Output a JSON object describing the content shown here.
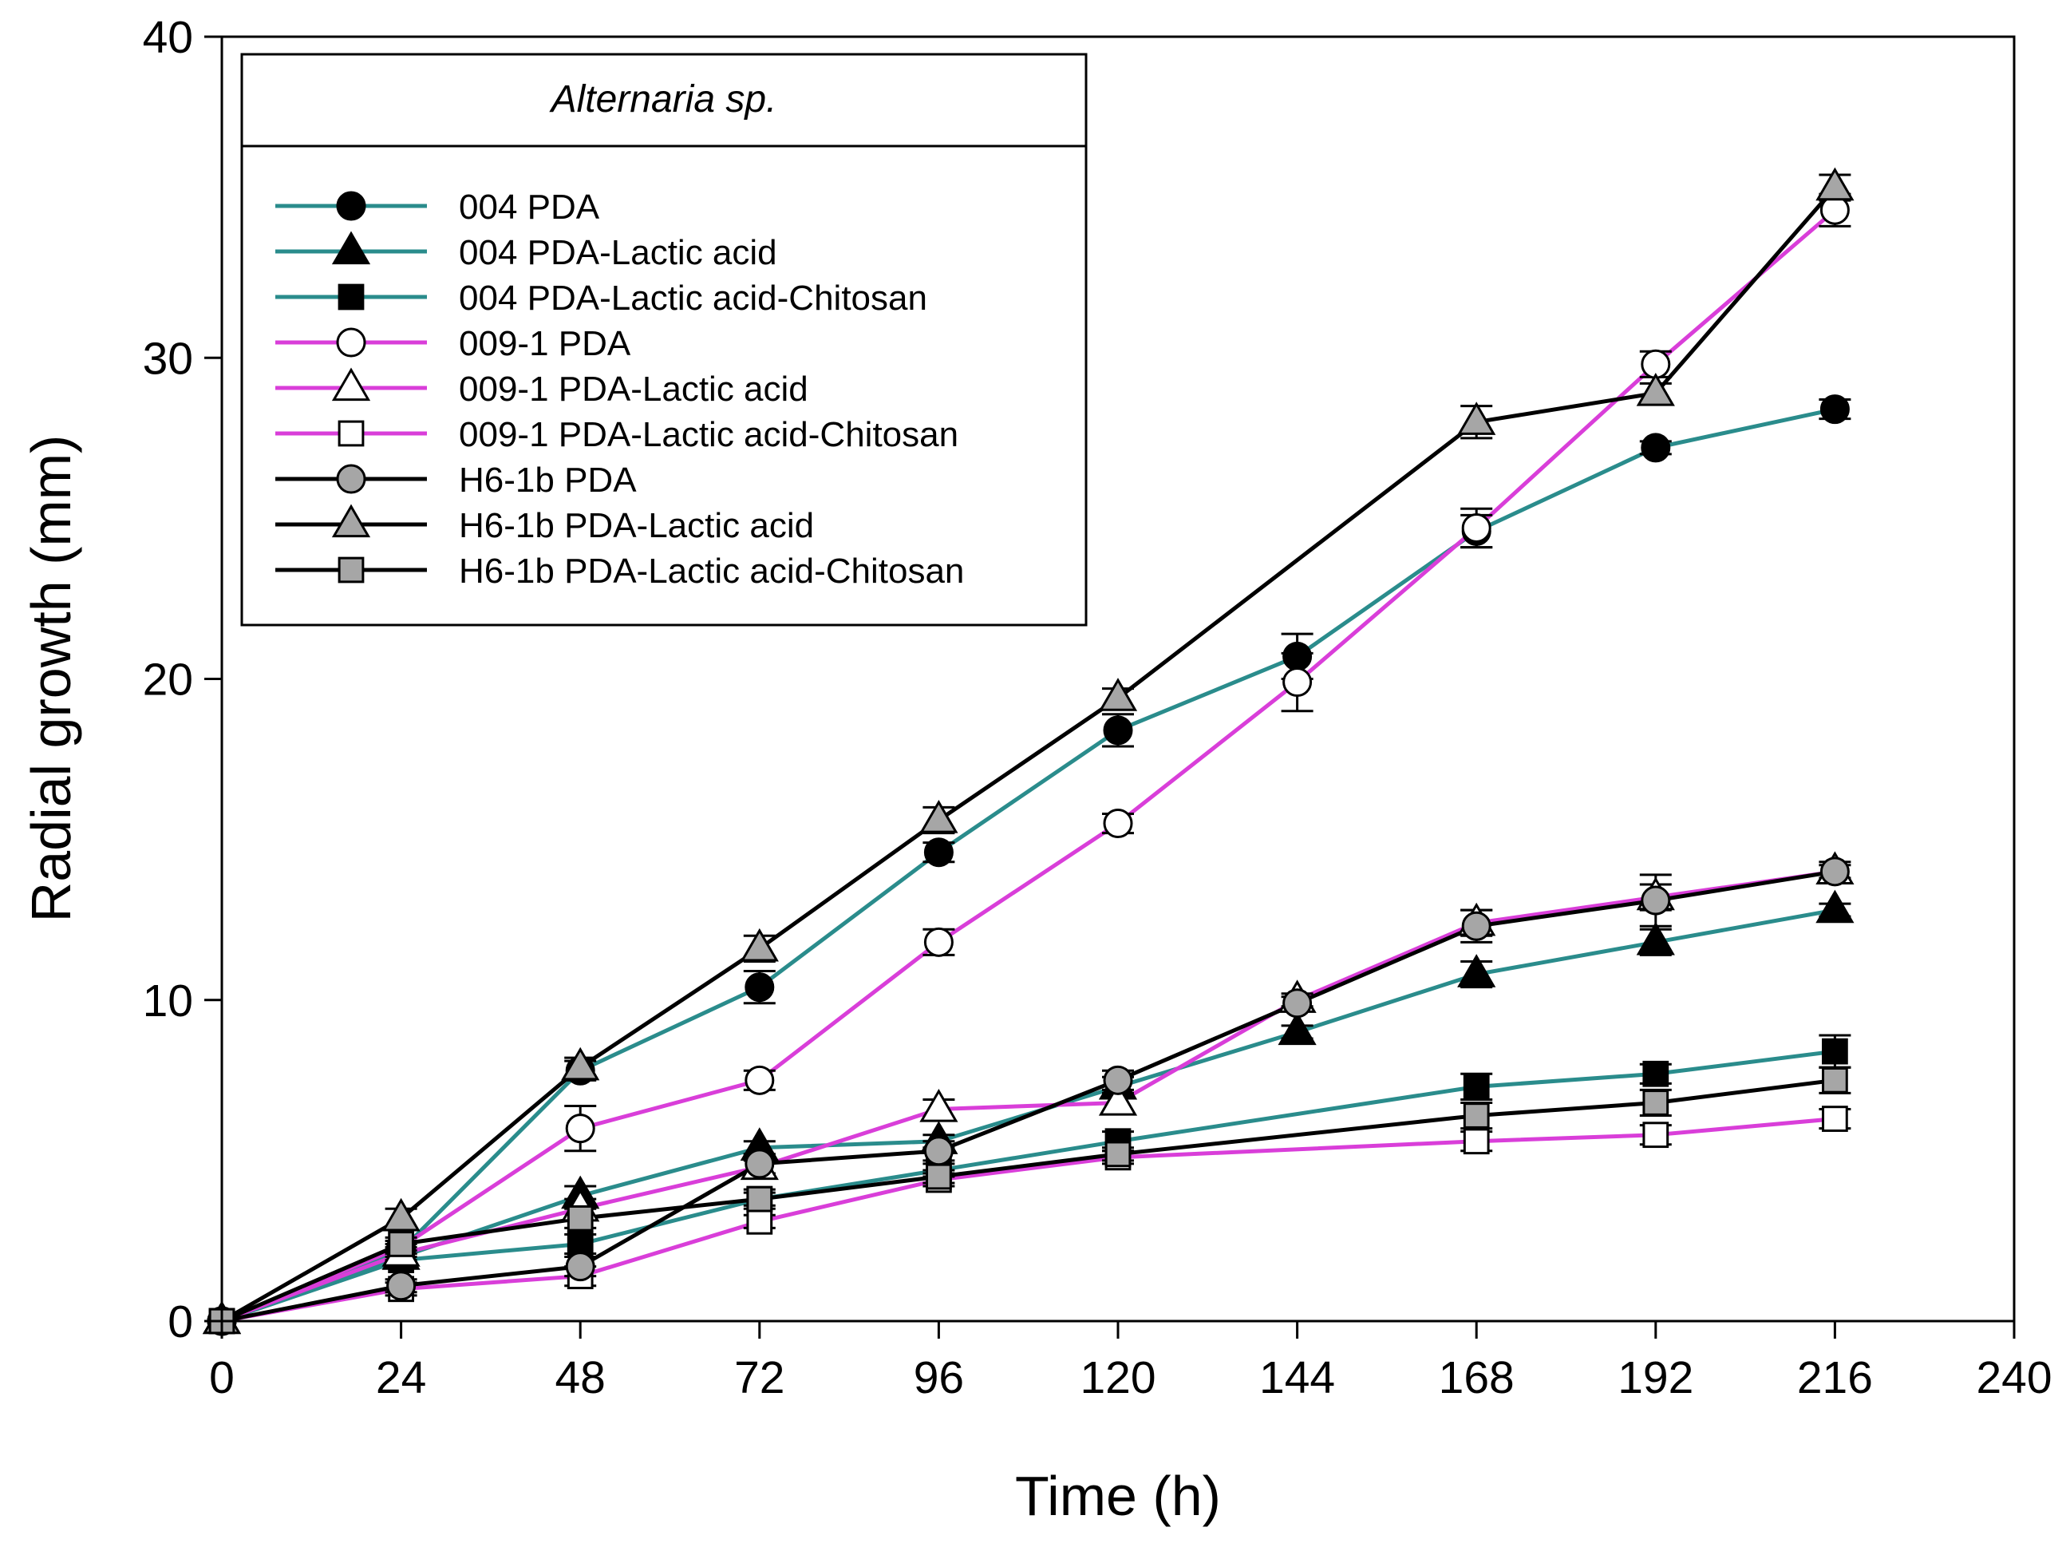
{
  "chart_data": {
    "type": "line",
    "title": "Alternaria sp.",
    "xlabel": "Time (h)",
    "ylabel": "Radial growth (mm)",
    "xlim": [
      0,
      240
    ],
    "ylim": [
      0,
      40
    ],
    "xticks": [
      0,
      24,
      48,
      72,
      96,
      120,
      144,
      168,
      192,
      216,
      240
    ],
    "yticks": [
      0,
      10,
      20,
      30,
      40
    ],
    "grid": false,
    "legend_position": "top-left",
    "colors": {
      "teal": "#2a8c8c",
      "magenta": "#d93ed9",
      "black": "#000000",
      "gray_marker": "#a6a6a6",
      "white_marker": "#ffffff"
    },
    "series": [
      {
        "name": "004 PDA",
        "line_color": "#2a8c8c",
        "marker": "circle",
        "marker_fill": "#000000",
        "x": [
          0,
          24,
          48,
          72,
          96,
          120,
          144,
          168,
          192,
          216
        ],
        "y": [
          0,
          2.2,
          7.8,
          10.4,
          14.6,
          18.4,
          20.7,
          24.6,
          27.2,
          28.4
        ],
        "err": [
          0,
          0.2,
          0.3,
          0.5,
          0.3,
          0.5,
          0.7,
          0.5,
          0.2,
          0.3
        ]
      },
      {
        "name": "004 PDA-Lactic acid",
        "line_color": "#2a8c8c",
        "marker": "triangle",
        "marker_fill": "#000000",
        "x": [
          0,
          24,
          48,
          72,
          96,
          120,
          144,
          168,
          192,
          216
        ],
        "y": [
          0,
          2.0,
          3.9,
          5.4,
          5.6,
          7.3,
          9.0,
          10.8,
          11.8,
          12.8
        ],
        "err": [
          0,
          0.2,
          0.3,
          0.2,
          0.2,
          0.3,
          0.2,
          0.4,
          0.4,
          0.2
        ]
      },
      {
        "name": "004 PDA-Lactic acid-Chitosan",
        "line_color": "#2a8c8c",
        "marker": "square",
        "marker_fill": "#000000",
        "x": [
          0,
          24,
          48,
          72,
          96,
          120,
          168,
          192,
          216
        ],
        "y": [
          0,
          1.9,
          2.4,
          3.8,
          4.7,
          5.6,
          7.3,
          7.7,
          8.4
        ],
        "err": [
          0,
          0.2,
          0.3,
          0.2,
          0.2,
          0.3,
          0.4,
          0.3,
          0.5
        ]
      },
      {
        "name": "009-1 PDA",
        "line_color": "#d93ed9",
        "marker": "circle",
        "marker_fill": "#ffffff",
        "x": [
          0,
          24,
          48,
          72,
          96,
          120,
          144,
          168,
          192,
          216
        ],
        "y": [
          0,
          2.3,
          6.0,
          7.5,
          11.8,
          15.5,
          19.9,
          24.7,
          29.8,
          34.6
        ],
        "err": [
          0,
          0.2,
          0.7,
          0.3,
          0.4,
          0.3,
          0.9,
          0.6,
          0.4,
          0.5
        ]
      },
      {
        "name": "009-1 PDA-Lactic acid",
        "line_color": "#d93ed9",
        "marker": "triangle",
        "marker_fill": "#ffffff",
        "x": [
          0,
          24,
          48,
          72,
          96,
          120,
          144,
          168,
          192,
          216
        ],
        "y": [
          0,
          2.1,
          3.5,
          4.8,
          6.6,
          6.8,
          10.0,
          12.4,
          13.2,
          14.0
        ],
        "err": [
          0,
          0.2,
          0.3,
          0.2,
          0.3,
          0.3,
          0.2,
          0.4,
          0.4,
          0.2
        ]
      },
      {
        "name": "009-1 PDA-Lactic acid-Chitosan",
        "line_color": "#d93ed9",
        "marker": "square",
        "marker_fill": "#ffffff",
        "x": [
          0,
          24,
          48,
          72,
          96,
          120,
          168,
          192,
          216
        ],
        "y": [
          0,
          1.0,
          1.4,
          3.1,
          4.4,
          5.1,
          5.6,
          5.8,
          6.3
        ],
        "err": [
          0,
          0.2,
          0.3,
          0.2,
          0.2,
          0.2,
          0.3,
          0.3,
          0.3
        ]
      },
      {
        "name": "H6-1b PDA",
        "line_color": "#000000",
        "marker": "circle",
        "marker_fill": "#a6a6a6",
        "x": [
          0,
          24,
          48,
          72,
          96,
          120,
          144,
          168,
          192,
          216
        ],
        "y": [
          0,
          1.1,
          1.7,
          4.9,
          5.3,
          7.5,
          9.9,
          12.3,
          13.1,
          14.0
        ],
        "err": [
          0,
          0.2,
          0.3,
          0.3,
          0.3,
          0.3,
          0.2,
          0.5,
          0.8,
          0.3
        ]
      },
      {
        "name": "H6-1b PDA-Lactic acid",
        "line_color": "#000000",
        "marker": "triangle",
        "marker_fill": "#a6a6a6",
        "x": [
          0,
          24,
          48,
          72,
          96,
          120,
          168,
          192,
          216
        ],
        "y": [
          0,
          3.2,
          7.9,
          11.6,
          15.6,
          19.4,
          28.0,
          28.9,
          35.3
        ],
        "err": [
          0,
          0.3,
          0.3,
          0.4,
          0.4,
          0.3,
          0.5,
          0.3,
          0.4
        ]
      },
      {
        "name": "H6-1b PDA-Lactic acid-Chitosan",
        "line_color": "#000000",
        "marker": "square",
        "marker_fill": "#a6a6a6",
        "x": [
          0,
          24,
          48,
          72,
          96,
          120,
          168,
          192,
          216
        ],
        "y": [
          0,
          2.4,
          3.2,
          3.8,
          4.5,
          5.2,
          6.4,
          6.8,
          7.5
        ],
        "err": [
          0,
          0.2,
          0.3,
          0.3,
          0.2,
          0.2,
          0.4,
          0.4,
          0.4
        ]
      }
    ]
  }
}
